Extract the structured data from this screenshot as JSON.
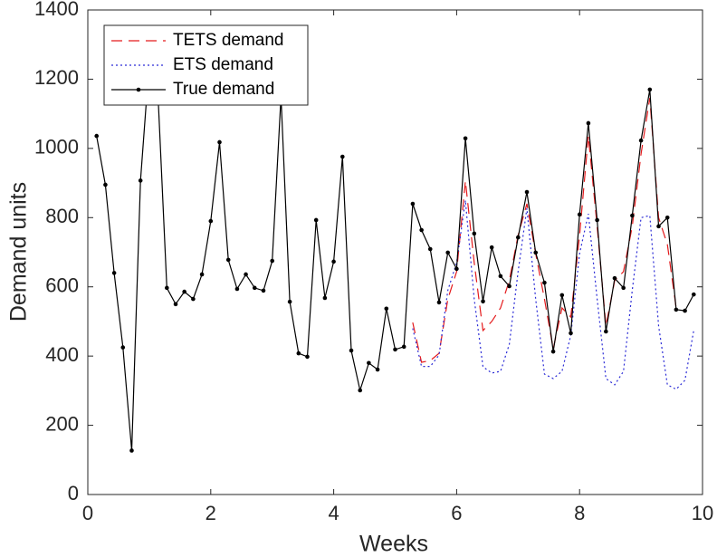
{
  "chart_data": {
    "type": "line",
    "xlabel": "Weeks",
    "ylabel": "Demand units",
    "x": [
      0.143,
      0.286,
      0.429,
      0.571,
      0.714,
      0.857,
      1,
      1.143,
      1.286,
      1.429,
      1.571,
      1.714,
      1.857,
      2,
      2.143,
      2.286,
      2.429,
      2.571,
      2.714,
      2.857,
      3,
      3.143,
      3.286,
      3.429,
      3.571,
      3.714,
      3.857,
      4,
      4.143,
      4.286,
      4.429,
      4.571,
      4.714,
      4.857,
      5,
      5.143,
      5.286,
      5.429,
      5.571,
      5.714,
      5.857,
      6,
      6.143,
      6.286,
      6.429,
      6.571,
      6.714,
      6.857,
      7,
      7.143,
      7.286,
      7.429,
      7.571,
      7.714,
      7.857,
      8,
      8.143,
      8.286,
      8.429,
      8.571,
      8.714,
      8.857,
      9,
      9.143,
      9.286,
      9.429,
      9.571,
      9.714,
      9.857
    ],
    "series": [
      {
        "name": "TETS demand",
        "color": "#e41a1c",
        "linestyle": "dashed",
        "values": [
          null,
          null,
          null,
          null,
          null,
          null,
          null,
          null,
          null,
          null,
          null,
          null,
          null,
          null,
          null,
          null,
          null,
          null,
          null,
          null,
          null,
          null,
          null,
          null,
          null,
          null,
          null,
          null,
          null,
          null,
          null,
          null,
          null,
          null,
          null,
          null,
          497,
          382,
          387,
          408,
          565,
          644,
          906,
          670,
          474,
          500,
          539,
          618,
          749,
          840,
          696,
          565,
          421,
          539,
          513,
          749,
          1036,
          775,
          487,
          618,
          644,
          775,
          984,
          1146,
          800,
          722,
          539,
          null,
          null
        ]
      },
      {
        "name": "ETS demand",
        "color": "#2b2bd6",
        "linestyle": "dotted",
        "values": [
          null,
          null,
          null,
          null,
          null,
          null,
          null,
          null,
          null,
          null,
          null,
          null,
          null,
          null,
          null,
          null,
          null,
          null,
          null,
          null,
          null,
          null,
          null,
          null,
          null,
          null,
          null,
          null,
          null,
          null,
          null,
          null,
          null,
          null,
          null,
          null,
          480,
          370,
          370,
          403,
          590,
          670,
          850,
          565,
          369,
          351,
          356,
          434,
          644,
          827,
          565,
          348,
          335,
          356,
          460,
          696,
          811,
          565,
          335,
          317,
          356,
          590,
          800,
          806,
          487,
          317,
          304,
          330,
          474
        ]
      },
      {
        "name": "True demand",
        "color": "#000000",
        "linestyle": "solid",
        "marker": true,
        "values": [
          1036,
          895,
          640,
          425,
          127,
          907,
          1250,
          1150,
          597,
          550,
          586,
          565,
          636,
          790,
          1018,
          678,
          594,
          636,
          597,
          589,
          675,
          1150,
          557,
          408,
          398,
          793,
          568,
          673,
          976,
          416,
          301,
          380,
          361,
          537,
          419,
          427,
          840,
          764,
          709,
          555,
          699,
          652,
          1029,
          754,
          558,
          714,
          631,
          602,
          743,
          874,
          699,
          612,
          413,
          576,
          466,
          809,
          1073,
          793,
          471,
          625,
          597,
          806,
          1023,
          1170,
          775,
          800,
          534,
          531,
          578
        ]
      }
    ],
    "xlim": [
      0,
      10
    ],
    "xticks": [
      0,
      2,
      4,
      6,
      8,
      10
    ],
    "ylim": [
      0,
      1400
    ],
    "yticks": [
      0,
      200,
      400,
      600,
      800,
      1000,
      1200,
      1400
    ],
    "legend": "upper left",
    "grid": false
  }
}
